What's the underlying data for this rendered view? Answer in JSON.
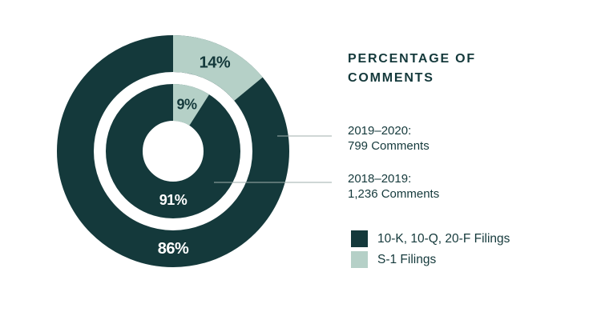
{
  "chart_data": {
    "type": "donut",
    "title": "PERCENTAGE OF COMMENTS",
    "rings": [
      {
        "id": "outer",
        "period": "2019–2020",
        "total_comments": "799 Comments",
        "segments": [
          {
            "label": "10-K, 10-Q, 20-F Filings",
            "value_pct": 86
          },
          {
            "label": "S-1 Filings",
            "value_pct": 14
          }
        ]
      },
      {
        "id": "inner",
        "period": "2018–2019",
        "total_comments": "1,236 Comments",
        "segments": [
          {
            "label": "10-K, 10-Q, 20-F Filings",
            "value_pct": 91
          },
          {
            "label": "S-1 Filings",
            "value_pct": 9
          }
        ]
      }
    ],
    "annotations": [
      {
        "line1": "2019–2020:",
        "line2": "799 Comments"
      },
      {
        "line1": "2018–2019:",
        "line2": "1,236 Comments"
      }
    ],
    "legend": [
      {
        "label": "10-K, 10-Q, 20-F Filings",
        "color": "#14393b"
      },
      {
        "label": "S-1 Filings",
        "color": "#b5d0c7"
      }
    ],
    "colors": {
      "dark": "#14393b",
      "light": "#b5d0c7",
      "leader_line": "#9fafae",
      "text": "#14393b",
      "pct_on_dark": "#ffffff",
      "pct_on_light": "#14393b",
      "background": "#ffffff"
    }
  }
}
